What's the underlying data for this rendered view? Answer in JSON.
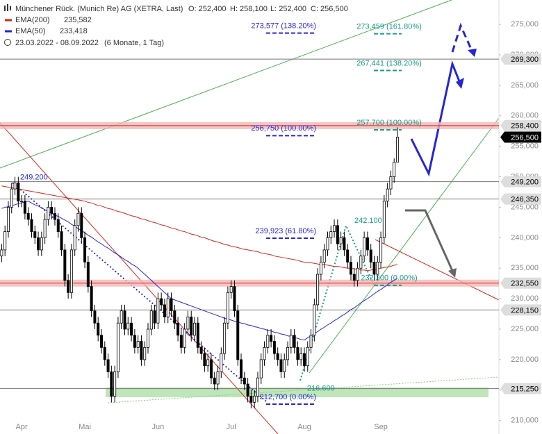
{
  "chart_data": {
    "type": "candlestick",
    "title": "Münchener Rück. (Munich Re) AG (XETRA, Last)",
    "quote": [
      "O: 252,400",
      "H: 258,100",
      "L: 252,400",
      "C: 256,500"
    ],
    "period": "23.03.2022 - 08.09.2022",
    "period_note": "(6 Monate, 1 Tag)",
    "categories": [
      null,
      null,
      null,
      null,
      null,
      null,
      "Apr",
      null,
      null,
      null,
      null,
      null,
      null,
      null,
      null,
      null,
      null,
      null,
      null,
      null,
      null,
      null,
      null,
      null,
      null,
      "Mai",
      null,
      null,
      null,
      null,
      null,
      null,
      null,
      null,
      null,
      null,
      null,
      null,
      null,
      null,
      null,
      null,
      null,
      null,
      null,
      null,
      null,
      "Jun",
      null,
      null,
      null,
      null,
      null,
      null,
      null,
      null,
      null,
      null,
      null,
      null,
      null,
      null,
      null,
      null,
      null,
      null,
      null,
      null,
      null,
      "Jul",
      null,
      null,
      null,
      null,
      null,
      null,
      null,
      null,
      null,
      null,
      null,
      null,
      null,
      null,
      null,
      null,
      null,
      null,
      null,
      null,
      null,
      "Aug",
      null,
      null,
      null,
      null,
      null,
      null,
      null,
      null,
      null,
      null,
      null,
      null,
      null,
      null,
      null,
      null,
      null,
      null,
      null,
      null,
      null,
      null,
      "Sep",
      null,
      null,
      null,
      null,
      null
    ],
    "candles": [
      [
        237000,
        239000,
        236000,
        238000
      ],
      [
        238000,
        242000,
        237000,
        241000
      ],
      [
        241000,
        246000,
        240000,
        245000
      ],
      [
        245000,
        249000,
        244000,
        248000
      ],
      [
        248000,
        250000,
        247000,
        249000
      ],
      [
        249000,
        250000,
        245000,
        246000
      ],
      [
        246000,
        247000,
        245000,
        246000
      ],
      [
        246000,
        247000,
        243000,
        244000
      ],
      [
        244000,
        245000,
        242000,
        243000
      ],
      [
        243000,
        244000,
        240000,
        241000
      ],
      [
        241000,
        242000,
        239000,
        240000
      ],
      [
        240000,
        241000,
        237000,
        238000
      ],
      [
        238000,
        241000,
        237000,
        240000
      ],
      [
        240000,
        244000,
        239000,
        243000
      ],
      [
        243000,
        246000,
        242000,
        245000
      ],
      [
        245000,
        246000,
        243000,
        244000
      ],
      [
        244000,
        245000,
        242000,
        243000
      ],
      [
        243000,
        244000,
        240000,
        241000
      ],
      [
        241000,
        242000,
        237000,
        238000
      ],
      [
        238000,
        239000,
        232000,
        233000
      ],
      [
        233000,
        234000,
        230000,
        231000
      ],
      [
        231000,
        239000,
        230000,
        238000
      ],
      [
        238000,
        243000,
        237000,
        242000
      ],
      [
        242000,
        245000,
        241000,
        244000
      ],
      [
        244000,
        245000,
        239000,
        240000
      ],
      [
        240000,
        241000,
        235000,
        236000
      ],
      [
        236000,
        237000,
        231000,
        232000
      ],
      [
        232000,
        233000,
        227000,
        228000
      ],
      [
        228000,
        229000,
        225000,
        226000
      ],
      [
        226000,
        227000,
        223000,
        224000
      ],
      [
        224000,
        225000,
        221000,
        222000
      ],
      [
        222000,
        223000,
        219000,
        220000
      ],
      [
        220000,
        221000,
        217000,
        218000
      ],
      [
        218000,
        219000,
        213000,
        214000
      ],
      [
        214000,
        219000,
        213000,
        218000
      ],
      [
        218000,
        227000,
        217000,
        226000
      ],
      [
        226000,
        229000,
        225000,
        228000
      ],
      [
        228000,
        229000,
        224000,
        225000
      ],
      [
        225000,
        227000,
        224000,
        226000
      ],
      [
        226000,
        227000,
        223000,
        224000
      ],
      [
        224000,
        225000,
        221000,
        222000
      ],
      [
        222000,
        224000,
        221000,
        223000
      ],
      [
        223000,
        224000,
        219000,
        220000
      ],
      [
        220000,
        223000,
        219000,
        222000
      ],
      [
        222000,
        226000,
        221000,
        225000
      ],
      [
        225000,
        229000,
        224000,
        228000
      ],
      [
        228000,
        229000,
        225000,
        226000
      ],
      [
        226000,
        231000,
        225000,
        230000
      ],
      [
        230000,
        231000,
        228000,
        229000
      ],
      [
        229000,
        230000,
        226000,
        227000
      ],
      [
        227000,
        231000,
        226000,
        230000
      ],
      [
        230000,
        231000,
        227000,
        228000
      ],
      [
        228000,
        229000,
        225000,
        226000
      ],
      [
        226000,
        227000,
        223000,
        224000
      ],
      [
        224000,
        225000,
        221000,
        222000
      ],
      [
        222000,
        226000,
        221000,
        225000
      ],
      [
        225000,
        228000,
        224000,
        227000
      ],
      [
        227000,
        228000,
        223000,
        224000
      ],
      [
        224000,
        227000,
        223000,
        226000
      ],
      [
        226000,
        227000,
        221000,
        222000
      ],
      [
        222000,
        223000,
        220000,
        221000
      ],
      [
        221000,
        222000,
        218000,
        219000
      ],
      [
        219000,
        221000,
        218000,
        220000
      ],
      [
        220000,
        221000,
        216000,
        217000
      ],
      [
        217000,
        218000,
        215000,
        216000
      ],
      [
        216000,
        219000,
        215000,
        218000
      ],
      [
        218000,
        222000,
        217000,
        221000
      ],
      [
        221000,
        227000,
        220000,
        226000
      ],
      [
        226000,
        232000,
        225000,
        231000
      ],
      [
        231000,
        233000,
        230000,
        232000
      ],
      [
        232000,
        233000,
        227000,
        228000
      ],
      [
        228000,
        229000,
        219000,
        220000
      ],
      [
        220000,
        221000,
        216000,
        217000
      ],
      [
        217000,
        218000,
        215000,
        216000
      ],
      [
        216000,
        217000,
        213000,
        214000
      ],
      [
        214000,
        215000,
        212000,
        213000
      ],
      [
        213000,
        215000,
        212000,
        214000
      ],
      [
        214000,
        218000,
        213000,
        217000
      ],
      [
        217000,
        221000,
        216000,
        220000
      ],
      [
        220000,
        223000,
        219000,
        222000
      ],
      [
        222000,
        225000,
        221000,
        224000
      ],
      [
        224000,
        225000,
        222000,
        223000
      ],
      [
        223000,
        224000,
        220000,
        221000
      ],
      [
        221000,
        222000,
        219000,
        220000
      ],
      [
        220000,
        221000,
        217000,
        218000
      ],
      [
        218000,
        221000,
        217000,
        220000
      ],
      [
        220000,
        223000,
        219000,
        222000
      ],
      [
        222000,
        225000,
        221000,
        224000
      ],
      [
        224000,
        225000,
        221000,
        222000
      ],
      [
        222000,
        223000,
        219000,
        220000
      ],
      [
        220000,
        222000,
        219000,
        221000
      ],
      [
        221000,
        222000,
        218000,
        219000
      ],
      [
        219000,
        223000,
        218000,
        222000
      ],
      [
        222000,
        225000,
        221000,
        224000
      ],
      [
        224000,
        230000,
        223000,
        229000
      ],
      [
        229000,
        235000,
        228000,
        234000
      ],
      [
        234000,
        237000,
        233000,
        236000
      ],
      [
        236000,
        239000,
        235000,
        238000
      ],
      [
        238000,
        241000,
        237000,
        240000
      ],
      [
        240000,
        242000,
        239000,
        241000
      ],
      [
        241000,
        243000,
        240000,
        242000
      ],
      [
        242000,
        243000,
        238000,
        239000
      ],
      [
        239000,
        241000,
        238000,
        240000
      ],
      [
        240000,
        241000,
        237000,
        238000
      ],
      [
        238000,
        239000,
        235000,
        236000
      ],
      [
        236000,
        237000,
        233000,
        234000
      ],
      [
        234000,
        235000,
        232000,
        233000
      ],
      [
        233000,
        236000,
        232000,
        235000
      ],
      [
        235000,
        238000,
        234000,
        237000
      ],
      [
        237000,
        241000,
        236000,
        240000
      ],
      [
        240000,
        241000,
        237000,
        238000
      ],
      [
        238000,
        239000,
        235000,
        236000
      ],
      [
        236000,
        237000,
        233000,
        234000
      ],
      [
        234000,
        237000,
        233000,
        236000
      ],
      [
        236000,
        241000,
        235000,
        240000
      ],
      [
        240000,
        247000,
        239000,
        246000
      ],
      [
        246000,
        249000,
        245000,
        248000
      ],
      [
        248000,
        251000,
        247000,
        250000
      ],
      [
        250000,
        253000,
        249000,
        252400
      ],
      [
        252400,
        258100,
        252400,
        256500
      ]
    ],
    "up_color": "#ffffff",
    "down_color": "#000000",
    "series": [
      {
        "name": "EMA(200)",
        "color": "#d8261c",
        "legend_value": "235,582",
        "values": [
          248500,
          248400,
          248300,
          248200,
          248100,
          248000,
          247900,
          247800,
          247700,
          247600,
          247500,
          247400,
          247300,
          247200,
          247100,
          247000,
          246900,
          246800,
          246700,
          246600,
          246500,
          246400,
          246300,
          246200,
          246100,
          246000,
          245800,
          245700,
          245500,
          245300,
          245200,
          245000,
          244800,
          244700,
          244500,
          244300,
          244200,
          244000,
          243800,
          243600,
          243500,
          243300,
          243100,
          243000,
          242800,
          242600,
          242500,
          242300,
          242100,
          242000,
          241800,
          241600,
          241500,
          241300,
          241100,
          241000,
          240800,
          240600,
          240500,
          240300,
          240100,
          240000,
          239800,
          239600,
          239400,
          239300,
          239100,
          238900,
          238800,
          238600,
          238500,
          238400,
          238200,
          238100,
          238000,
          237900,
          237800,
          237700,
          237500,
          237400,
          237300,
          237200,
          237000,
          236900,
          236800,
          236700,
          236600,
          236500,
          236400,
          236300,
          236100,
          236000,
          235900,
          235900,
          235800,
          235700,
          235600,
          235600,
          235500,
          235400,
          235300,
          235300,
          235200,
          235100,
          235000,
          235000,
          234900,
          234800,
          234700,
          234700,
          234600,
          234700,
          234800,
          234900,
          235000,
          235100,
          235200,
          235300,
          235500,
          235582
        ]
      },
      {
        "name": "EMA(50)",
        "color": "#2626d6",
        "legend_value": "233,418",
        "values": [
          244800,
          245000,
          245100,
          245300,
          245400,
          245600,
          245700,
          245900,
          246000,
          245700,
          245400,
          245200,
          244900,
          244600,
          244300,
          244000,
          243700,
          243500,
          243200,
          242900,
          242600,
          242200,
          241900,
          241500,
          241200,
          240800,
          240400,
          240100,
          239700,
          239300,
          239000,
          238600,
          238300,
          237900,
          237500,
          237200,
          236800,
          236400,
          236100,
          235700,
          235400,
          235000,
          234500,
          234000,
          233500,
          233000,
          232500,
          232000,
          231500,
          231000,
          230500,
          230000,
          229800,
          229600,
          229400,
          229200,
          229000,
          228800,
          228600,
          228400,
          228200,
          228000,
          227800,
          227600,
          227400,
          227200,
          227000,
          226800,
          226600,
          226500,
          226300,
          226200,
          226000,
          225900,
          225700,
          225600,
          225400,
          225300,
          225100,
          225000,
          224800,
          224700,
          224500,
          224400,
          224200,
          224100,
          223900,
          223800,
          223600,
          223500,
          223300,
          223200,
          223600,
          223900,
          224300,
          224600,
          225000,
          225300,
          225700,
          226000,
          226400,
          226700,
          227100,
          227400,
          227800,
          228200,
          228500,
          228900,
          229300,
          229700,
          230000,
          230400,
          230800,
          231200,
          231500,
          231900,
          232300,
          232700,
          233000,
          233418
        ]
      }
    ],
    "ylim": [
      207800,
      279000
    ],
    "yticks": [
      {
        "value": 210000,
        "label": "210,000"
      },
      {
        "value": 215000,
        "label": "215,000"
      },
      {
        "value": 220000,
        "label": "220,000"
      },
      {
        "value": 225000,
        "label": "225,000"
      },
      {
        "value": 230000,
        "label": "230,000"
      },
      {
        "value": 235000,
        "label": "235,000"
      },
      {
        "value": 240000,
        "label": "240,000"
      },
      {
        "value": 245000,
        "label": "245,000"
      },
      {
        "value": 250000,
        "label": "250,000"
      },
      {
        "value": 255000,
        "label": "255,000"
      },
      {
        "value": 260000,
        "label": "260,000"
      },
      {
        "value": 265000,
        "label": "265,000"
      },
      {
        "value": 270000,
        "label": "270,000"
      },
      {
        "value": 275000,
        "label": "275,000"
      }
    ],
    "levels": [
      {
        "value": 269300,
        "label": "269,300",
        "kind": "line"
      },
      {
        "value": 258400,
        "label": "258,400",
        "kind": "band"
      },
      {
        "value": 256500,
        "label": "256,500",
        "kind": "current"
      },
      {
        "value": 249200,
        "label": "249,200",
        "kind": "line"
      },
      {
        "value": 246350,
        "label": "246,350",
        "kind": "line"
      },
      {
        "value": 232550,
        "label": "232,550",
        "kind": "band"
      },
      {
        "value": 228150,
        "label": "228,150",
        "kind": "line"
      },
      {
        "value": 215250,
        "label": "215,250",
        "kind": "line"
      }
    ],
    "fib_blue": {
      "color": "#2626d6",
      "levels": [
        {
          "value": 273577,
          "label": "273,577 (138.20%)"
        },
        {
          "value": 256750,
          "label": "256,750 (100.00%)"
        },
        {
          "value": 239923,
          "label": "239,923 (61.80%)"
        },
        {
          "value": 212700,
          "label": "212,700 (0.00%)"
        }
      ]
    },
    "fib_teal": {
      "color": "#1a9a8a",
      "levels": [
        {
          "value": 273459,
          "label": "273,459 (161.80%)"
        },
        {
          "value": 267441,
          "label": "267,441 (138.20%)"
        },
        {
          "value": 257700,
          "label": "257,700 (100.00%)"
        },
        {
          "value": 232200,
          "label": "232,200 (0.00%)"
        }
      ]
    },
    "pivots": [
      {
        "value": 249200,
        "label": "249.200",
        "color": "#2626d6"
      },
      {
        "value": 242100,
        "label": "242.100",
        "color": "#1a9a8a"
      },
      {
        "value": 216600,
        "label": "216.600",
        "color": "#1a9a8a"
      }
    ]
  }
}
